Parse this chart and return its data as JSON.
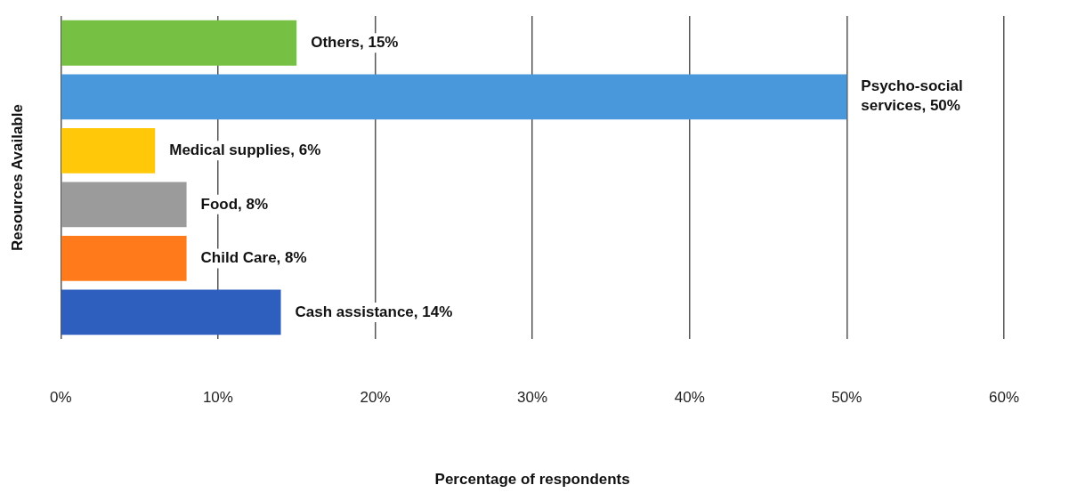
{
  "chart_data": {
    "type": "bar",
    "orientation": "horizontal",
    "categories": [
      null,
      null,
      null,
      null,
      null,
      null
    ],
    "values": [
      15,
      50,
      6,
      8,
      8,
      14
    ],
    "colors": [
      "#76c043",
      "#4a98dc",
      "#ffc90a",
      "#9b9b9b",
      "#ff7a1a",
      "#2e5fbf"
    ],
    "value_labels": [
      "Others, 15%",
      "Psycho-social services, 50%",
      "Medical supplies, 6%",
      "Food, 8%",
      "Child Care, 8%",
      "Cash assistance, 14%"
    ],
    "xlim": [
      0,
      60
    ],
    "xticks": [
      {
        "value": 0,
        "label": "0%"
      },
      {
        "value": 10,
        "label": "10%"
      },
      {
        "value": 20,
        "label": "20%"
      },
      {
        "value": 30,
        "label": "30%"
      },
      {
        "value": 40,
        "label": "40%"
      },
      {
        "value": 50,
        "label": "50%"
      },
      {
        "value": 60,
        "label": "60%"
      }
    ],
    "xlabel": "Percentage of respondents",
    "ylabel": "Resources Available",
    "grid": "x",
    "tick_labels": "x",
    "legend": false
  }
}
